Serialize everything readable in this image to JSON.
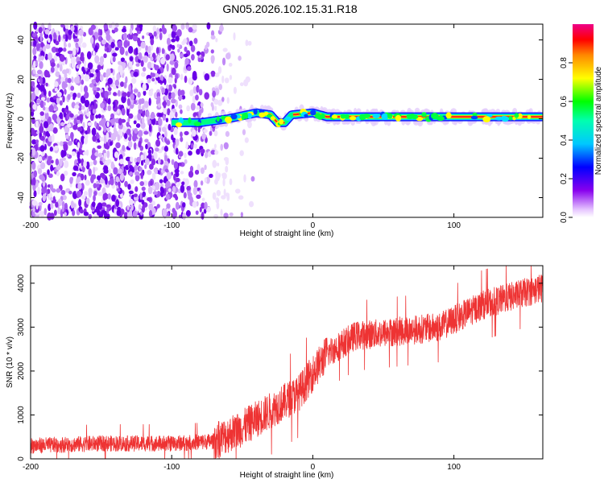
{
  "title": "GN05.2026.102.15.31.R18",
  "chart_data": [
    {
      "type": "heatmap",
      "xlabel": "Height of straight line (km)",
      "ylabel": "Frequency (Hz)",
      "xlim": [
        -200,
        163
      ],
      "ylim": [
        -50,
        48
      ],
      "xticks": [
        -200,
        -100,
        0,
        100
      ],
      "yticks": [
        -40,
        -20,
        0,
        20,
        40
      ],
      "colorbar": {
        "label": "Normalized spectral amplitude",
        "range": [
          0.0,
          1.0
        ],
        "ticks": [
          0.0,
          0.2,
          0.4,
          0.6,
          0.8
        ]
      },
      "ridge_profile": [
        {
          "x": -100,
          "y": -2
        },
        {
          "x": -80,
          "y": -2
        },
        {
          "x": -60,
          "y": 0
        },
        {
          "x": -40,
          "y": 3
        },
        {
          "x": -30,
          "y": 2
        },
        {
          "x": -25,
          "y": -2
        },
        {
          "x": -20,
          "y": -2
        },
        {
          "x": -15,
          "y": 2
        },
        {
          "x": 0,
          "y": 3
        },
        {
          "x": 10,
          "y": 1
        },
        {
          "x": 50,
          "y": 1
        },
        {
          "x": 100,
          "y": 1
        },
        {
          "x": 163,
          "y": 1
        }
      ]
    },
    {
      "type": "line",
      "xlabel": "Height of straight line (km)",
      "ylabel": "SNR (10 * v/v)",
      "xlim": [
        -200,
        163
      ],
      "ylim": [
        0,
        4400
      ],
      "xticks": [
        -200,
        -100,
        0,
        100
      ],
      "yticks": [
        0,
        1000,
        2000,
        3000,
        4000
      ],
      "series": [
        {
          "name": "SNR",
          "color": "#ee3333",
          "trend": [
            {
              "x": -200,
              "y": 300
            },
            {
              "x": -150,
              "y": 350
            },
            {
              "x": -100,
              "y": 350
            },
            {
              "x": -70,
              "y": 400
            },
            {
              "x": -50,
              "y": 700
            },
            {
              "x": -30,
              "y": 1100
            },
            {
              "x": -10,
              "y": 1500
            },
            {
              "x": 10,
              "y": 2400
            },
            {
              "x": 30,
              "y": 2800
            },
            {
              "x": 60,
              "y": 2900
            },
            {
              "x": 90,
              "y": 3000
            },
            {
              "x": 120,
              "y": 3500
            },
            {
              "x": 163,
              "y": 3900
            }
          ]
        }
      ]
    }
  ]
}
